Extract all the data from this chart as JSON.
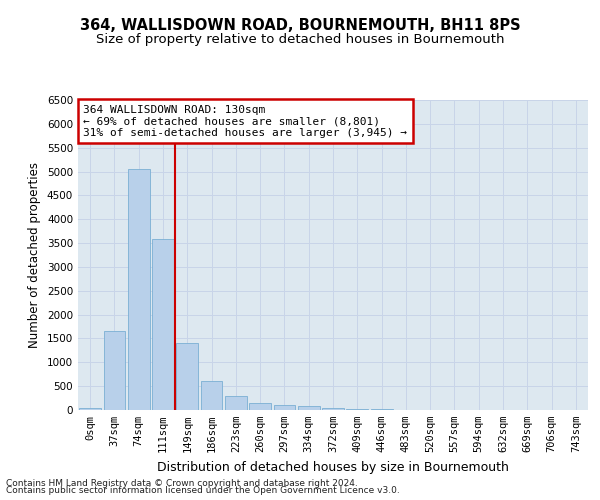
{
  "title": "364, WALLISDOWN ROAD, BOURNEMOUTH, BH11 8PS",
  "subtitle": "Size of property relative to detached houses in Bournemouth",
  "xlabel": "Distribution of detached houses by size in Bournemouth",
  "ylabel": "Number of detached properties",
  "bin_labels": [
    "0sqm",
    "37sqm",
    "74sqm",
    "111sqm",
    "149sqm",
    "186sqm",
    "223sqm",
    "260sqm",
    "297sqm",
    "334sqm",
    "372sqm",
    "409sqm",
    "446sqm",
    "483sqm",
    "520sqm",
    "557sqm",
    "594sqm",
    "632sqm",
    "669sqm",
    "706sqm",
    "743sqm"
  ],
  "bar_heights": [
    50,
    1650,
    5050,
    3580,
    1400,
    600,
    295,
    150,
    110,
    80,
    50,
    30,
    20,
    8,
    4,
    2,
    1,
    0,
    0,
    0,
    0
  ],
  "bar_color": "#b8d0ea",
  "bar_edge_color": "#7aafd4",
  "vline_x": 3.5,
  "vline_color": "#cc0000",
  "annotation_text": "364 WALLISDOWN ROAD: 130sqm\n← 69% of detached houses are smaller (8,801)\n31% of semi-detached houses are larger (3,945) →",
  "annotation_box_color": "#cc0000",
  "ylim": [
    0,
    6500
  ],
  "yticks": [
    0,
    500,
    1000,
    1500,
    2000,
    2500,
    3000,
    3500,
    4000,
    4500,
    5000,
    5500,
    6000,
    6500
  ],
  "grid_color": "#c8d4e8",
  "background_color": "#dde8f0",
  "footer_line1": "Contains HM Land Registry data © Crown copyright and database right 2024.",
  "footer_line2": "Contains public sector information licensed under the Open Government Licence v3.0.",
  "title_fontsize": 10.5,
  "subtitle_fontsize": 9.5,
  "xlabel_fontsize": 9,
  "ylabel_fontsize": 8.5,
  "tick_fontsize": 7.5,
  "annotation_fontsize": 8,
  "footer_fontsize": 6.5
}
